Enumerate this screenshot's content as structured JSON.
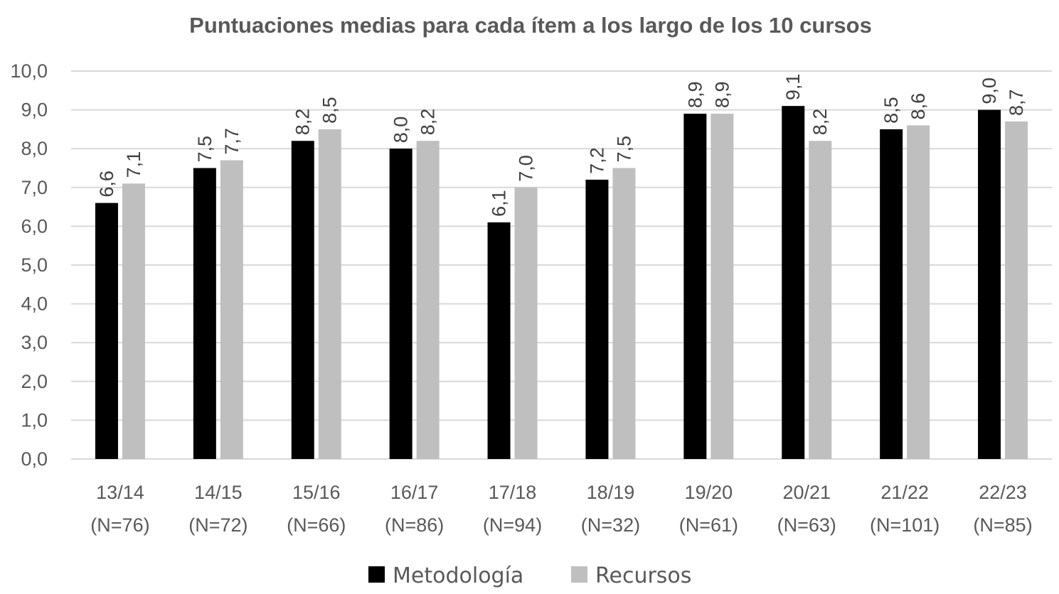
{
  "chart_data": {
    "type": "bar",
    "title": "Puntuaciones medias para cada ítem a los largo de los 10 cursos",
    "xlabel": "",
    "ylabel": "",
    "ylim": [
      0,
      10
    ],
    "yticks": [
      "0,0",
      "1,0",
      "2,0",
      "3,0",
      "4,0",
      "5,0",
      "6,0",
      "7,0",
      "8,0",
      "9,0",
      "10,0"
    ],
    "ytick_values": [
      0,
      1,
      2,
      3,
      4,
      5,
      6,
      7,
      8,
      9,
      10
    ],
    "grid": true,
    "legend_position": "bottom",
    "categories": [
      {
        "year": "13/14",
        "n": "(N=76)"
      },
      {
        "year": "14/15",
        "n": "(N=72)"
      },
      {
        "year": "15/16",
        "n": "(N=66)"
      },
      {
        "year": "16/17",
        "n": "(N=86)"
      },
      {
        "year": "17/18",
        "n": "(N=94)"
      },
      {
        "year": "18/19",
        "n": "(N=32)"
      },
      {
        "year": "19/20",
        "n": "(N=61)"
      },
      {
        "year": "20/21",
        "n": "(N=63)"
      },
      {
        "year": "21/22",
        "n": "(N=101)"
      },
      {
        "year": "22/23",
        "n": "(N=85)"
      }
    ],
    "series": [
      {
        "name": "Metodología",
        "color": "#000000",
        "values": [
          6.6,
          7.5,
          8.2,
          8.0,
          6.1,
          7.2,
          8.9,
          9.1,
          8.5,
          9.0
        ],
        "labels": [
          "6,6",
          "7,5",
          "8,2",
          "8,0",
          "6,1",
          "7,2",
          "8,9",
          "9,1",
          "8,5",
          "9,0"
        ]
      },
      {
        "name": "Recursos",
        "color": "#bfbfbf",
        "values": [
          7.1,
          7.7,
          8.5,
          8.2,
          7.0,
          7.5,
          8.9,
          8.2,
          8.6,
          8.7
        ],
        "labels": [
          "7,1",
          "7,7",
          "8,5",
          "8,2",
          "7,0",
          "7,5",
          "8,9",
          "8,2",
          "8,6",
          "8,7"
        ]
      }
    ]
  }
}
